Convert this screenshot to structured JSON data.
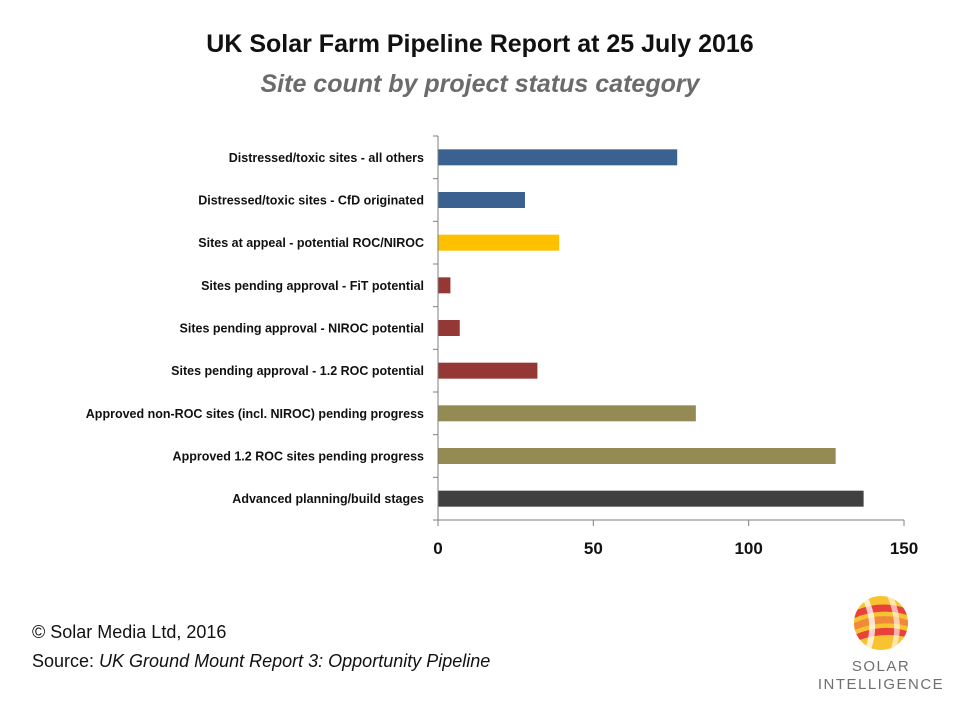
{
  "header": {
    "title": "UK Solar Farm Pipeline Report at 25 July 2016",
    "subtitle": "Site count by project status category"
  },
  "chart_data": {
    "type": "bar",
    "orientation": "horizontal",
    "title": "UK Solar Farm Pipeline Report at 25 July 2016",
    "subtitle": "Site count by project status category",
    "xlabel": "",
    "ylabel": "",
    "xlim": [
      0,
      150
    ],
    "xticks": [
      0,
      50,
      100,
      150
    ],
    "grid": false,
    "categories": [
      "Distressed/toxic sites - all others",
      "Distressed/toxic sites - CfD originated",
      "Sites at appeal - potential ROC/NIROC",
      "Sites pending approval - FiT potential",
      "Sites pending approval - NIROC potential",
      "Sites pending approval - 1.2 ROC potential",
      "Approved non-ROC sites (incl. NIROC) pending progress",
      "Approved 1.2 ROC sites pending progress",
      "Advanced planning/build stages"
    ],
    "values": [
      77,
      28,
      39,
      4,
      7,
      32,
      83,
      128,
      137
    ],
    "colors": [
      "#3a6190",
      "#3a6190",
      "#ffc000",
      "#953735",
      "#953735",
      "#953735",
      "#948a54",
      "#948a54",
      "#404040"
    ]
  },
  "footer": {
    "copyright": "© Solar Media Ltd, 2016",
    "source_prefix": "Source: ",
    "source_title": "UK Ground Mount Report 3: Opportunity Pipeline"
  },
  "logo": {
    "line1": "SOLAR",
    "line2": "INTELLIGENCE",
    "icon": "sun-globe-icon"
  }
}
